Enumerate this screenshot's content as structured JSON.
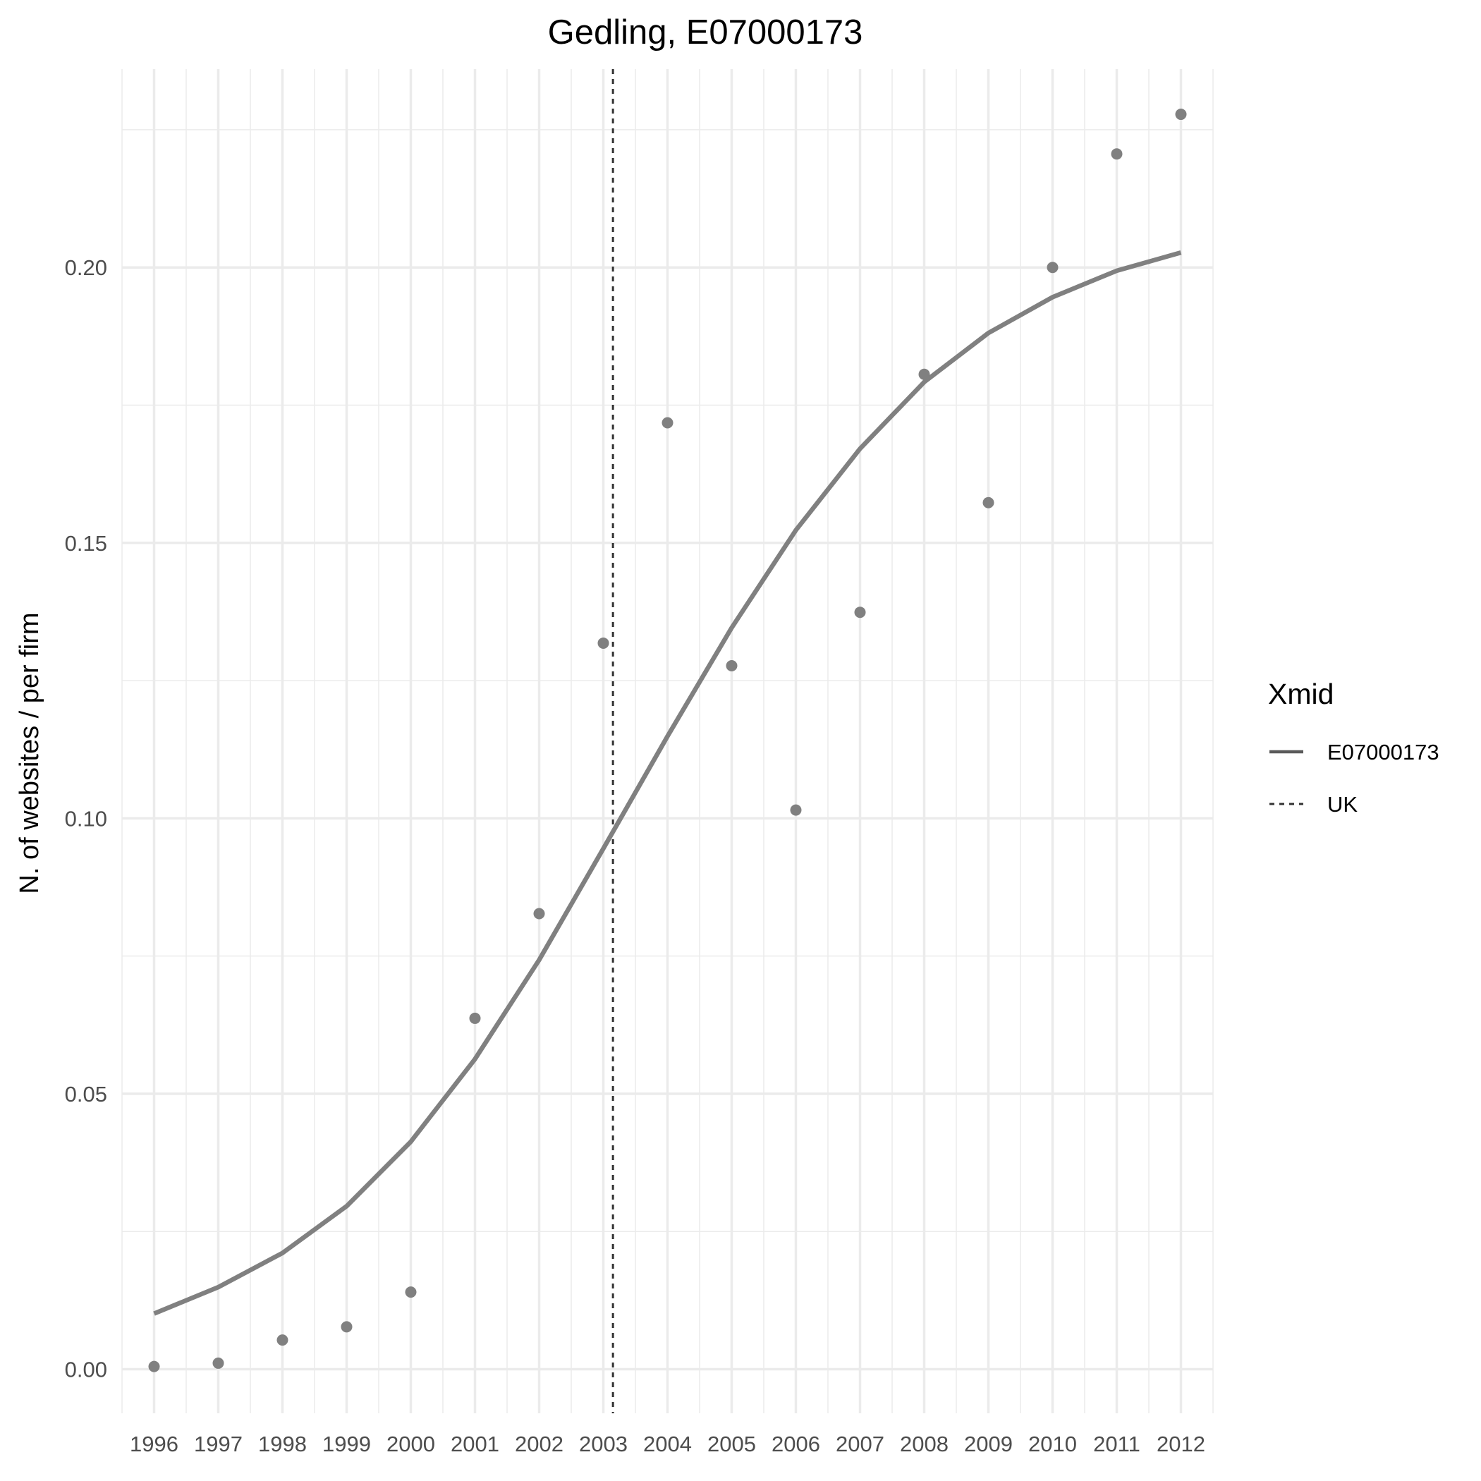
{
  "chart_data": {
    "type": "line",
    "title": "Gedling, E07000173",
    "xlabel": "",
    "ylabel": "N. of websites / per firm",
    "x": [
      1996,
      1997,
      1998,
      1999,
      2000,
      2001,
      2002,
      2003,
      2004,
      2005,
      2006,
      2007,
      2008,
      2009,
      2010,
      2011,
      2012
    ],
    "x_tick_labels": [
      "1996",
      "1997",
      "1998",
      "1999",
      "2000",
      "2001",
      "2002",
      "2003",
      "2004",
      "2005",
      "2006",
      "2007",
      "2008",
      "2009",
      "2010",
      "2011",
      "2012"
    ],
    "y_ticks": [
      0.0,
      0.05,
      0.1,
      0.15,
      0.2
    ],
    "y_tick_labels": [
      "0.00",
      "0.05",
      "0.10",
      "0.15",
      "0.20"
    ],
    "xlim": [
      1995.5,
      2012.5
    ],
    "ylim": [
      -0.008,
      0.236
    ],
    "grid": true,
    "series": [
      {
        "name": "E07000173",
        "kind": "line",
        "style": "solid",
        "color": "#808080",
        "values": [
          0.0101,
          0.0149,
          0.0211,
          0.0296,
          0.0413,
          0.0563,
          0.0743,
          0.0945,
          0.1149,
          0.1346,
          0.1523,
          0.1671,
          0.1792,
          0.1881,
          0.1946,
          0.1994,
          0.2027
        ]
      },
      {
        "name": "",
        "kind": "points",
        "color": "#808080",
        "values": [
          0.0005,
          0.0011,
          0.0053,
          0.0077,
          0.014,
          0.0637,
          0.0827,
          0.1318,
          0.1718,
          0.1277,
          0.1015,
          0.1374,
          0.1806,
          0.1573,
          0.2,
          0.2206,
          0.2278
        ]
      }
    ],
    "reference_lines": [
      {
        "name": "UK",
        "orientation": "vertical",
        "x": 2003.15,
        "style": "dashed",
        "color": "#333333"
      }
    ],
    "legend": {
      "title": "Xmid",
      "position": "right",
      "items": [
        {
          "label": "E07000173",
          "style": "solid",
          "color": "#5a5a5a"
        },
        {
          "label": "UK",
          "style": "dashed",
          "color": "#333333"
        }
      ]
    }
  }
}
